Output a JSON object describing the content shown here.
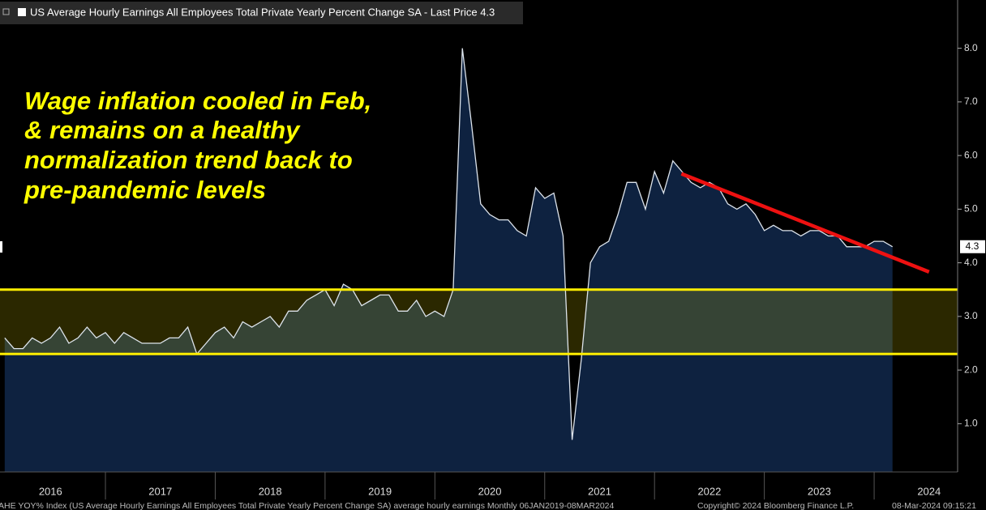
{
  "chart_data": {
    "type": "area",
    "annotation": [
      "Wage inflation cooled in Feb,",
      "& remains on a healthy",
      "normalization trend back to",
      "pre-pandemic levels"
    ],
    "series": [
      {
        "name": "US Average Hourly Earnings All Employees Total Private Yearly Percent Change SA - Last Price 4.3",
        "color": "#dde4ec",
        "fill": "#0e2240",
        "values": [
          2.6,
          2.4,
          2.4,
          2.6,
          2.5,
          2.6,
          2.8,
          2.5,
          2.6,
          2.8,
          2.6,
          2.7,
          2.5,
          2.7,
          2.6,
          2.5,
          2.5,
          2.5,
          2.6,
          2.6,
          2.8,
          2.3,
          2.5,
          2.7,
          2.8,
          2.6,
          2.9,
          2.8,
          2.9,
          3.0,
          2.8,
          3.1,
          3.1,
          3.3,
          3.4,
          3.5,
          3.2,
          3.6,
          3.5,
          3.2,
          3.3,
          3.4,
          3.4,
          3.1,
          3.1,
          3.3,
          3.0,
          3.1,
          3.0,
          3.5,
          8.0,
          6.6,
          5.1,
          4.9,
          4.8,
          4.8,
          4.6,
          4.5,
          5.4,
          5.2,
          5.3,
          4.5,
          0.7,
          2.2,
          4.0,
          4.3,
          4.4,
          4.9,
          5.5,
          5.5,
          5.0,
          5.7,
          5.3,
          5.9,
          5.7,
          5.5,
          5.4,
          5.5,
          5.4,
          5.1,
          5.0,
          5.1,
          4.9,
          4.6,
          4.7,
          4.6,
          4.6,
          4.5,
          4.6,
          4.6,
          4.5,
          4.5,
          4.3,
          4.3,
          4.3,
          4.4,
          4.4,
          4.3
        ]
      }
    ],
    "x": [
      2016.083,
      2016.167,
      2016.25,
      2016.333,
      2016.417,
      2016.5,
      2016.583,
      2016.667,
      2016.75,
      2016.833,
      2016.917,
      2017,
      2017.083,
      2017.167,
      2017.25,
      2017.333,
      2017.417,
      2017.5,
      2017.583,
      2017.667,
      2017.75,
      2017.833,
      2017.917,
      2018,
      2018.083,
      2018.167,
      2018.25,
      2018.333,
      2018.417,
      2018.5,
      2018.583,
      2018.667,
      2018.75,
      2018.833,
      2018.917,
      2019,
      2019.083,
      2019.167,
      2019.25,
      2019.333,
      2019.417,
      2019.5,
      2019.583,
      2019.667,
      2019.75,
      2019.833,
      2019.917,
      2020,
      2020.083,
      2020.167,
      2020.25,
      2020.333,
      2020.417,
      2020.5,
      2020.583,
      2020.667,
      2020.75,
      2020.833,
      2020.917,
      2021,
      2021.083,
      2021.167,
      2021.25,
      2021.333,
      2021.417,
      2021.5,
      2021.583,
      2021.667,
      2021.75,
      2021.833,
      2021.917,
      2022,
      2022.083,
      2022.167,
      2022.25,
      2022.333,
      2022.417,
      2022.5,
      2022.583,
      2022.667,
      2022.75,
      2022.833,
      2022.917,
      2023,
      2023.083,
      2023.167,
      2023.25,
      2023.333,
      2023.417,
      2023.5,
      2023.583,
      2023.667,
      2023.75,
      2023.833,
      2023.917,
      2024,
      2024.083,
      2024.167
    ],
    "xlim": [
      2016.04,
      2024.76
    ],
    "xticks": [
      {
        "value": 2016.5,
        "label": "2016"
      },
      {
        "value": 2017.5,
        "label": "2017"
      },
      {
        "value": 2018.5,
        "label": "2018"
      },
      {
        "value": 2019.5,
        "label": "2019"
      },
      {
        "value": 2020.5,
        "label": "2020"
      },
      {
        "value": 2021.5,
        "label": "2021"
      },
      {
        "value": 2022.5,
        "label": "2022"
      },
      {
        "value": 2023.5,
        "label": "2023"
      },
      {
        "value": 2024.5,
        "label": "2024"
      }
    ],
    "ylim": [
      0.1,
      8.9
    ],
    "yticks": [
      {
        "value": 1,
        "label": "1.0"
      },
      {
        "value": 2,
        "label": "2.0"
      },
      {
        "value": 3,
        "label": "3.0"
      },
      {
        "value": 4,
        "label": "4.0"
      },
      {
        "value": 5,
        "label": "5.0"
      },
      {
        "value": 6,
        "label": "6.0"
      },
      {
        "value": 7,
        "label": "7.0"
      },
      {
        "value": 8,
        "label": "8.0"
      }
    ],
    "band": {
      "values": [
        2.3,
        3.5
      ],
      "color": "#ffee00"
    },
    "trend_line": {
      "x": [
        2022.245,
        2024.5
      ],
      "values": [
        5.66,
        3.83
      ],
      "color": "#ee1111"
    },
    "footer": {
      "left": "AHE YOY% Index (US Average Hourly Earnings All Employees Total Private Yearly Percent Change SA) average hourly earnings  Monthly 06JAN2019-08MAR2024",
      "middle": "Copyright© 2024 Bloomberg Finance L.P.",
      "right": "08-Mar-2024 09:15:21"
    }
  }
}
